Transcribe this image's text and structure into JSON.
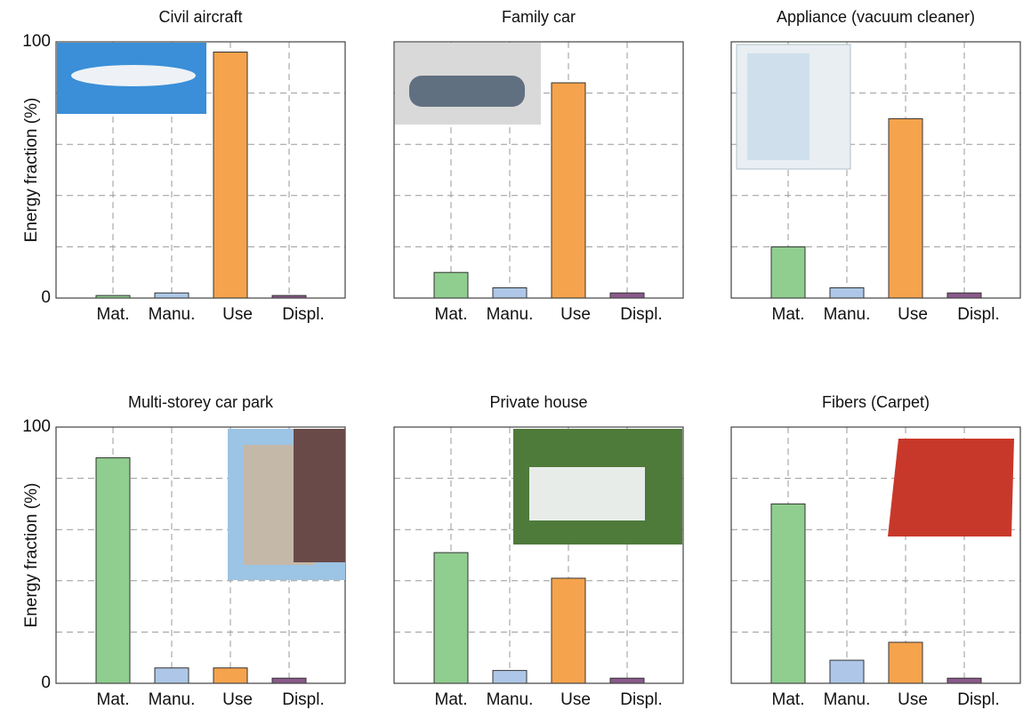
{
  "chart_data": [
    {
      "type": "bar",
      "title": "Civil aircraft",
      "categories": [
        "Mat.",
        "Manu.",
        "Use",
        "Displ."
      ],
      "values": [
        1,
        2,
        96,
        1
      ],
      "colors": [
        "#8fce8f",
        "#aec7e8",
        "#f5a34c",
        "#8a5a8a"
      ],
      "ylim": [
        0,
        100
      ],
      "yticks": [
        0,
        100
      ],
      "ylabel": "Energy fraction (%)",
      "ygrid": [
        20,
        40,
        60,
        80
      ],
      "grid": true
    },
    {
      "type": "bar",
      "title": "Family car",
      "categories": [
        "Mat.",
        "Manu.",
        "Use",
        "Displ."
      ],
      "values": [
        10,
        4,
        84,
        2
      ],
      "colors": [
        "#8fce8f",
        "#aec7e8",
        "#f5a34c",
        "#8a5a8a"
      ],
      "ylim": [
        0,
        100
      ],
      "ygrid": [
        20,
        40,
        60,
        80
      ],
      "grid": true
    },
    {
      "type": "bar",
      "title": "Appliance (vacuum cleaner)",
      "categories": [
        "Mat.",
        "Manu.",
        "Use",
        "Displ."
      ],
      "values": [
        20,
        4,
        70,
        2
      ],
      "colors": [
        "#8fce8f",
        "#aec7e8",
        "#f5a34c",
        "#8a5a8a"
      ],
      "ylim": [
        0,
        100
      ],
      "ygrid": [
        20,
        40,
        60,
        80
      ],
      "grid": true
    },
    {
      "type": "bar",
      "title": "Multi-storey car park",
      "categories": [
        "Mat.",
        "Manu.",
        "Use",
        "Displ."
      ],
      "values": [
        88,
        6,
        6,
        2
      ],
      "colors": [
        "#8fce8f",
        "#aec7e8",
        "#f5a34c",
        "#8a5a8a"
      ],
      "ylim": [
        0,
        100
      ],
      "yticks": [
        0,
        100
      ],
      "ylabel": "Energy fraction (%)",
      "ygrid": [
        20,
        40,
        60,
        80
      ],
      "grid": true
    },
    {
      "type": "bar",
      "title": "Private house",
      "categories": [
        "Mat.",
        "Manu.",
        "Use",
        "Displ."
      ],
      "values": [
        51,
        5,
        41,
        2
      ],
      "colors": [
        "#8fce8f",
        "#aec7e8",
        "#f5a34c",
        "#8a5a8a"
      ],
      "ylim": [
        0,
        100
      ],
      "ygrid": [
        20,
        40,
        60,
        80
      ],
      "grid": true
    },
    {
      "type": "bar",
      "title": "Fibers (Carpet)",
      "categories": [
        "Mat.",
        "Manu.",
        "Use",
        "Displ."
      ],
      "values": [
        70,
        9,
        16,
        2
      ],
      "colors": [
        "#8fce8f",
        "#aec7e8",
        "#f5a34c",
        "#8a5a8a"
      ],
      "ylim": [
        0,
        100
      ],
      "ygrid": [
        20,
        40,
        60,
        80
      ],
      "grid": true
    }
  ]
}
